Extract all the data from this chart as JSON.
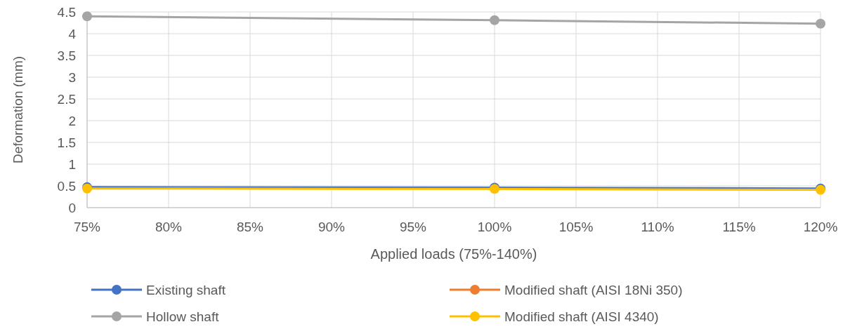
{
  "chart_data": {
    "type": "line",
    "xlabel": "Applied loads (75%-140%)",
    "ylabel": "Deformation (mm)",
    "x": [
      75,
      100,
      120
    ],
    "series": [
      {
        "name": "Existing shaft",
        "color": "#4472c4",
        "values": [
          0.47,
          0.46,
          0.44
        ]
      },
      {
        "name": "Modified shaft (AISI 18Ni 350)",
        "color": "#ed7d31",
        "values": [
          null,
          null,
          null
        ]
      },
      {
        "name": "Hollow shaft",
        "color": "#a5a5a5",
        "values": [
          4.4,
          4.31,
          4.23
        ]
      },
      {
        "name": "Modified shaft (AISI 4340)",
        "color": "#ffc000",
        "values": [
          0.44,
          0.43,
          0.41
        ]
      }
    ],
    "xlim": [
      75,
      120
    ],
    "xticks": [
      {
        "value": 75,
        "label": "75%"
      },
      {
        "value": 80,
        "label": "80%"
      },
      {
        "value": 85,
        "label": "85%"
      },
      {
        "value": 90,
        "label": "90%"
      },
      {
        "value": 95,
        "label": "95%"
      },
      {
        "value": 100,
        "label": "100%"
      },
      {
        "value": 105,
        "label": "105%"
      },
      {
        "value": 110,
        "label": "110%"
      },
      {
        "value": 115,
        "label": "115%"
      },
      {
        "value": 120,
        "label": "120%"
      }
    ],
    "ylim": [
      0,
      4.5
    ],
    "yticks": [
      0,
      0.5,
      1,
      1.5,
      2,
      2.5,
      3,
      3.5,
      4,
      4.5
    ],
    "grid": true,
    "legend": "bottom",
    "marker": "circle",
    "line_style": "solid"
  }
}
